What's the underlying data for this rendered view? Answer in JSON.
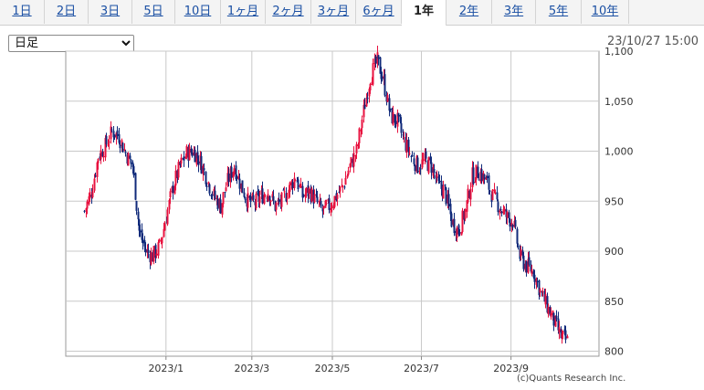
{
  "tabs": [
    {
      "label": "1日"
    },
    {
      "label": "2日"
    },
    {
      "label": "3日"
    },
    {
      "label": "5日"
    },
    {
      "label": "10日"
    },
    {
      "label": "1ヶ月"
    },
    {
      "label": "2ヶ月"
    },
    {
      "label": "3ヶ月"
    },
    {
      "label": "6ヶ月"
    },
    {
      "label": "1年"
    },
    {
      "label": "2年"
    },
    {
      "label": "3年"
    },
    {
      "label": "5年"
    },
    {
      "label": "10年"
    }
  ],
  "active_tab": "1年",
  "select": {
    "value": "日足"
  },
  "timestamp": "23/10/27 15:00",
  "copyright": "(c)Quants Research Inc.",
  "colors": {
    "up": "#e8123f",
    "down": "#102a7a",
    "grid": "#c8c8c8",
    "border": "#999999"
  },
  "chart_data": {
    "type": "candlestick",
    "ylim": [
      795,
      1100
    ],
    "y_ticks": [
      800,
      850,
      900,
      950,
      1000,
      1050,
      1100
    ],
    "y_tick_labels": [
      "800",
      "850",
      "900",
      "950",
      "1,000",
      "1,050",
      "1,100"
    ],
    "x_ticks": [
      "2023/1",
      "2023/3",
      "2023/5",
      "2023/7",
      "2023/9"
    ],
    "x_tick_positions": [
      0.376,
      0.698,
      1.0,
      1.334,
      1.67
    ],
    "x_range": [
      0.0,
      2.0
    ],
    "series_weekly_close": [
      940,
      960,
      995,
      1005,
      1020,
      1015,
      998,
      985,
      920,
      900,
      895,
      905,
      935,
      965,
      985,
      998,
      1000,
      990,
      972,
      955,
      945,
      970,
      985,
      965,
      950,
      948,
      955,
      960,
      945,
      950,
      962,
      975,
      955,
      960,
      950,
      940,
      945,
      955,
      965,
      985,
      1000,
      1040,
      1075,
      1090,
      1070,
      1035,
      1030,
      1010,
      995,
      985,
      990,
      985,
      965,
      960,
      930,
      920,
      940,
      975,
      980,
      970,
      955,
      945,
      935,
      930,
      895,
      885,
      880,
      860,
      845,
      830,
      815,
      810
    ]
  }
}
